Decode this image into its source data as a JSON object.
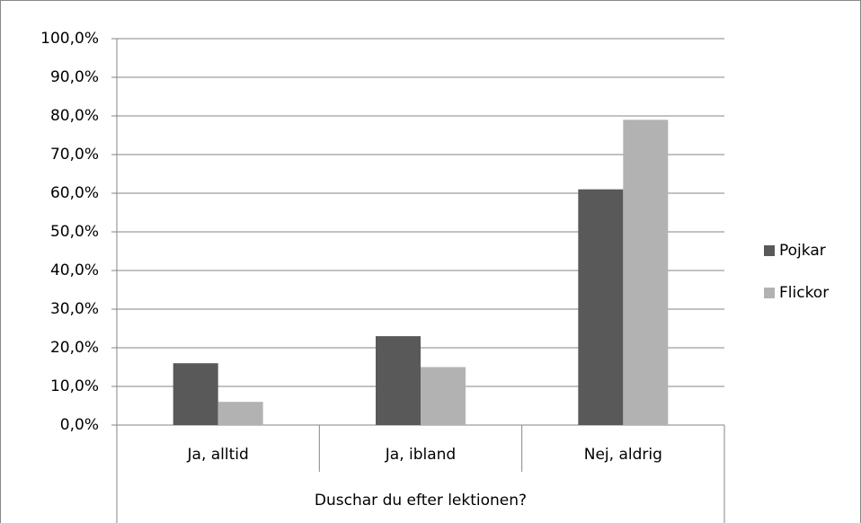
{
  "chart_data": {
    "type": "bar",
    "categories": [
      "Ja, alltid",
      "Ja, ibland",
      "Nej, aldrig"
    ],
    "x_label": "Duschar du efter lektionen?",
    "series": [
      {
        "name": "Pojkar",
        "color": "#595959",
        "values": [
          16,
          23,
          61
        ]
      },
      {
        "name": "Flickor",
        "color": "#b2b2b2",
        "values": [
          6,
          15,
          79
        ]
      }
    ],
    "ylim": [
      0,
      100
    ],
    "yticks": [
      {
        "value": 0,
        "label": "0,0%"
      },
      {
        "value": 10,
        "label": "10,0%"
      },
      {
        "value": 20,
        "label": "20,0%"
      },
      {
        "value": 30,
        "label": "30,0%"
      },
      {
        "value": 40,
        "label": "40,0%"
      },
      {
        "value": 50,
        "label": "50,0%"
      },
      {
        "value": 60,
        "label": "60,0%"
      },
      {
        "value": 70,
        "label": "70,0%"
      },
      {
        "value": 80,
        "label": "80,0%"
      },
      {
        "value": 90,
        "label": "90,0%"
      },
      {
        "value": 100,
        "label": "100,0%"
      }
    ],
    "grid": true,
    "legend": "right"
  }
}
